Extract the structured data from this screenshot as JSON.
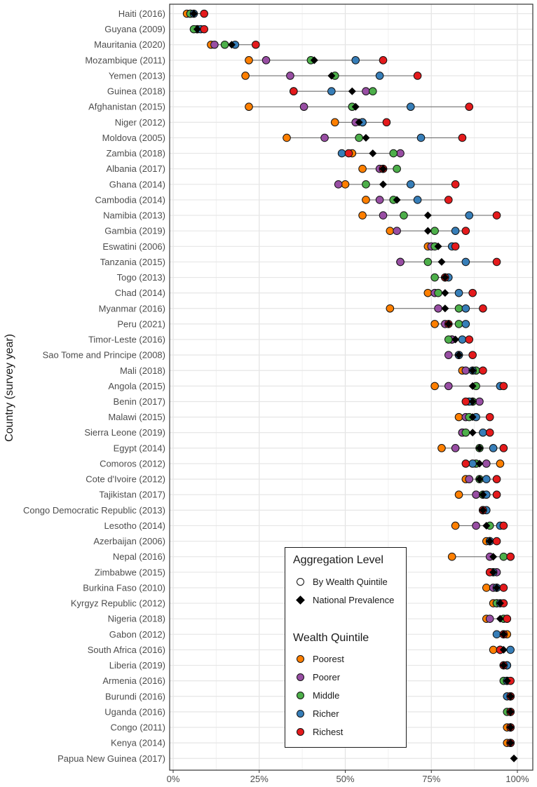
{
  "chart_data": {
    "type": "scatter",
    "ylabel": "Country (survey year)",
    "xlabel": "",
    "xlim": [
      0,
      100
    ],
    "x_ticks": [
      "0%",
      "25%",
      "50%",
      "75%",
      "100%"
    ],
    "x_tick_values": [
      0,
      25,
      50,
      75,
      100
    ],
    "grid": true,
    "quintile_colors": {
      "Poorest": "#ff7f00",
      "Poorer": "#984ea3",
      "Middle": "#4daf4a",
      "Richer": "#377eb8",
      "Richest": "#e41a1c"
    },
    "national_marker_color": "#000000",
    "countries": [
      {
        "label": "Haiti (2016)",
        "poorest": 4,
        "poorer": 5,
        "middle": 5,
        "richer": 6,
        "richest": 9,
        "national": 6
      },
      {
        "label": "Guyana (2009)",
        "poorest": 7,
        "poorer": 7,
        "middle": 6,
        "richer": 8,
        "richest": 9,
        "national": 7
      },
      {
        "label": "Mauritania (2020)",
        "poorest": 11,
        "poorer": 12,
        "middle": 15,
        "richer": 18,
        "richest": 24,
        "national": 17
      },
      {
        "label": "Mozambique (2011)",
        "poorest": 22,
        "poorer": 27,
        "middle": 40,
        "richer": 53,
        "richest": 61,
        "national": 41
      },
      {
        "label": "Yemen (2013)",
        "poorest": 21,
        "poorer": 34,
        "middle": 47,
        "richer": 60,
        "richest": 71,
        "national": 46
      },
      {
        "label": "Guinea (2018)",
        "poorest": 35,
        "poorer": 56,
        "middle": 58,
        "richer": 46,
        "richest": 35,
        "national": 52
      },
      {
        "label": "Afghanistan (2015)",
        "poorest": 22,
        "poorer": 38,
        "middle": 52,
        "richer": 69,
        "richest": 86,
        "national": 53
      },
      {
        "label": "Niger (2012)",
        "poorest": 47,
        "poorer": 53,
        "middle": 55,
        "richer": 55,
        "richest": 62,
        "national": 54
      },
      {
        "label": "Moldova (2005)",
        "poorest": 33,
        "poorer": 44,
        "middle": 54,
        "richer": 72,
        "richest": 84,
        "national": 56
      },
      {
        "label": "Zambia (2018)",
        "poorest": 52,
        "poorer": 66,
        "middle": 64,
        "richer": 49,
        "richest": 51,
        "national": 58
      },
      {
        "label": "Albania (2017)",
        "poorest": 55,
        "poorer": 60,
        "middle": 65,
        "richer": 61,
        "richest": 61,
        "national": 61
      },
      {
        "label": "Ghana (2014)",
        "poorest": 50,
        "poorer": 48,
        "middle": 56,
        "richer": 69,
        "richest": 82,
        "national": 61
      },
      {
        "label": "Cambodia (2014)",
        "poorest": 56,
        "poorer": 60,
        "middle": 64,
        "richer": 71,
        "richest": 80,
        "national": 65
      },
      {
        "label": "Namibia (2013)",
        "poorest": 55,
        "poorer": 61,
        "middle": 67,
        "richer": 86,
        "richest": 94,
        "national": 74
      },
      {
        "label": "Gambia (2019)",
        "poorest": 63,
        "poorer": 65,
        "middle": 76,
        "richer": 82,
        "richest": 85,
        "national": 74
      },
      {
        "label": "Eswatini (2006)",
        "poorest": 74,
        "poorer": 75,
        "middle": 76,
        "richer": 81,
        "richest": 82,
        "national": 77
      },
      {
        "label": "Tanzania (2015)",
        "poorest": 66,
        "poorer": 66,
        "middle": 74,
        "richer": 85,
        "richest": 94,
        "national": 78
      },
      {
        "label": "Togo (2013)",
        "poorest": 79,
        "poorer": 79,
        "middle": 76,
        "richer": 80,
        "richest": 79,
        "national": 79
      },
      {
        "label": "Chad (2014)",
        "poorest": 74,
        "poorer": 76,
        "middle": 77,
        "richer": 83,
        "richest": 87,
        "national": 79
      },
      {
        "label": "Myanmar (2016)",
        "poorest": 63,
        "poorer": 77,
        "middle": 83,
        "richer": 85,
        "richest": 90,
        "national": 79
      },
      {
        "label": "Peru (2021)",
        "poorest": 76,
        "poorer": 79,
        "middle": 83,
        "richer": 85,
        "richest": 80,
        "national": 80
      },
      {
        "label": "Timor-Leste (2016)",
        "poorest": 81,
        "poorer": 81,
        "middle": 80,
        "richer": 84,
        "richest": 86,
        "national": 82
      },
      {
        "label": "Sao Tome and Principe (2008)",
        "poorest": 83,
        "poorer": 80,
        "middle": 83,
        "richer": 83,
        "richest": 87,
        "national": 83
      },
      {
        "label": "Mali (2018)",
        "poorest": 84,
        "poorer": 85,
        "middle": 88,
        "richer": 87,
        "richest": 90,
        "national": 87
      },
      {
        "label": "Angola (2015)",
        "poorest": 76,
        "poorer": 80,
        "middle": 88,
        "richer": 95,
        "richest": 96,
        "national": 87
      },
      {
        "label": "Benin (2017)",
        "poorest": 87,
        "poorer": 89,
        "middle": 87,
        "richer": 86,
        "richest": 85,
        "national": 87
      },
      {
        "label": "Malawi (2015)",
        "poorest": 83,
        "poorer": 85,
        "middle": 86,
        "richer": 88,
        "richest": 92,
        "national": 87
      },
      {
        "label": "Sierra Leone (2019)",
        "poorest": 84,
        "poorer": 84,
        "middle": 85,
        "richer": 90,
        "richest": 92,
        "national": 87
      },
      {
        "label": "Egypt (2014)",
        "poorest": 78,
        "poorer": 82,
        "middle": 89,
        "richer": 93,
        "richest": 96,
        "national": 89
      },
      {
        "label": "Comoros (2012)",
        "poorest": 95,
        "poorer": 91,
        "middle": 88,
        "richer": 87,
        "richest": 85,
        "national": 89
      },
      {
        "label": "Cote d'Ivoire (2012)",
        "poorest": 85,
        "poorer": 86,
        "middle": 89,
        "richer": 91,
        "richest": 94,
        "national": 89
      },
      {
        "label": "Tajikistan (2017)",
        "poorest": 83,
        "poorer": 88,
        "middle": 90,
        "richer": 91,
        "richest": 94,
        "national": 90
      },
      {
        "label": "Congo Democratic Republic (2013)",
        "poorest": 90,
        "poorer": 90,
        "middle": 90,
        "richer": 91,
        "richest": 90,
        "national": 90
      },
      {
        "label": "Lesotho (2014)",
        "poorest": 82,
        "poorer": 88,
        "middle": 92,
        "richer": 95,
        "richest": 96,
        "national": 91
      },
      {
        "label": "Azerbaijan (2006)",
        "poorest": 91,
        "poorer": 92,
        "middle": 92,
        "richer": 92,
        "richest": 94,
        "national": 92
      },
      {
        "label": "Nepal (2016)",
        "poorest": 81,
        "poorer": 92,
        "middle": 96,
        "richer": 98,
        "richest": 98,
        "national": 93
      },
      {
        "label": "Zimbabwe (2015)",
        "poorest": 92,
        "poorer": 94,
        "middle": 93,
        "richer": 93,
        "richest": 92,
        "national": 93
      },
      {
        "label": "Burkina Faso (2010)",
        "poorest": 91,
        "poorer": 93,
        "middle": 94,
        "richer": 94,
        "richest": 96,
        "national": 94
      },
      {
        "label": "Kyrgyz Republic (2012)",
        "poorest": 93,
        "poorer": 94,
        "middle": 94,
        "richer": 95,
        "richest": 96,
        "national": 95
      },
      {
        "label": "Nigeria (2018)",
        "poorest": 91,
        "poorer": 92,
        "middle": 96,
        "richer": 97,
        "richest": 97,
        "national": 95
      },
      {
        "label": "Gabon (2012)",
        "poorest": 97,
        "poorer": 96,
        "middle": 96,
        "richer": 94,
        "richest": 96,
        "national": 96
      },
      {
        "label": "South Africa (2016)",
        "poorest": 93,
        "poorer": 95,
        "middle": 95,
        "richer": 98,
        "richest": 95,
        "national": 96
      },
      {
        "label": "Liberia (2019)",
        "poorest": 97,
        "poorer": 96,
        "middle": 97,
        "richer": 97,
        "richest": 96,
        "national": 96
      },
      {
        "label": "Armenia (2016)",
        "poorest": 97,
        "poorer": 97,
        "middle": 96,
        "richer": 97,
        "richest": 98,
        "national": 97
      },
      {
        "label": "Burundi (2016)",
        "poorest": 98,
        "poorer": 98,
        "middle": 98,
        "richer": 97,
        "richest": 98,
        "national": 98
      },
      {
        "label": "Uganda (2016)",
        "poorest": 98,
        "poorer": 98,
        "middle": 97,
        "richer": 98,
        "richest": 98,
        "national": 98
      },
      {
        "label": "Congo (2011)",
        "poorest": 97,
        "poorer": 98,
        "middle": 98,
        "richer": 98,
        "richest": 98,
        "national": 98
      },
      {
        "label": "Kenya (2014)",
        "poorest": 97,
        "poorer": 98,
        "middle": 98,
        "richer": 98,
        "richest": 98,
        "national": 98
      },
      {
        "label": "Papua New Guinea (2017)",
        "poorest": null,
        "poorer": null,
        "middle": null,
        "richer": null,
        "richest": null,
        "national": 99
      }
    ]
  },
  "legend": {
    "aggregation_title": "Aggregation Level",
    "by_quintile_label": "By Wealth Quintile",
    "national_label": "National Prevalence",
    "quintile_title": "Wealth Quintile",
    "quintiles": [
      "Poorest",
      "Poorer",
      "Middle",
      "Richer",
      "Richest"
    ]
  }
}
